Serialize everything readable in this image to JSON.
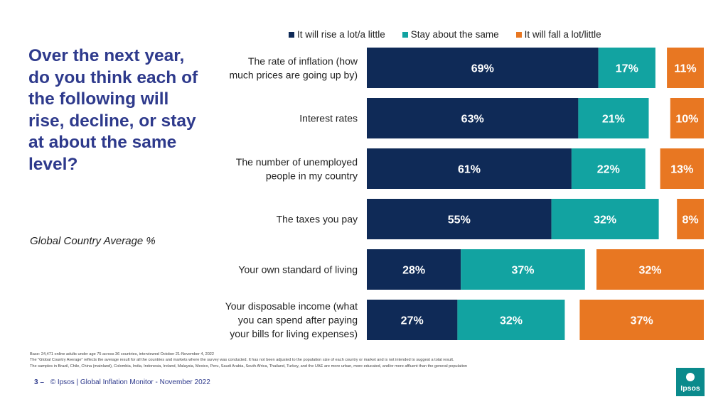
{
  "question": "Over the next year, do you think each of the following will rise, decline, or stay at about the same level?",
  "subtitle": "Global Country Average %",
  "footnotes": [
    "Base: 24,471 online adults under age 75 across 36 countries, interviewed October 21-November 4, 2022",
    "The \"Global Country Average\" reflects the average result for all the countries and markets where the survey was conducted. It has not been adjusted to the population size of each country or market and is not intended to suggest a total result.",
    "The samples in Brazil, Chile, China (mainland), Colombia, India, Indonesia, Ireland, Malaysia, Mexico, Peru, Saudi Arabia, South Africa, Thailand, Turkey, and the UAE are more urban, more educated, and/or more affluent than the general population"
  ],
  "footer": {
    "page": "3 –",
    "text": "© Ipsos | Global Inflation Monitor - November 2022"
  },
  "logo": {
    "text": "Ipsos",
    "color": "#0a8a8c"
  },
  "colors": {
    "rise": "#0f2a57",
    "same": "#12a3a1",
    "fall": "#e87722"
  },
  "chart_data": {
    "type": "bar",
    "orientation": "horizontal-stacked-diverging",
    "categories": [
      "The rate of inflation (how much prices are going up by)",
      "Interest rates",
      "The number of unemployed people in my country",
      "The taxes you pay",
      "Your own standard of living",
      "Your disposable income (what you can spend after paying your bills for living expenses)"
    ],
    "series": [
      {
        "name": "It will rise a lot/a little",
        "values": [
          69,
          63,
          61,
          55,
          28,
          27
        ]
      },
      {
        "name": "Stay about the same",
        "values": [
          17,
          21,
          22,
          32,
          37,
          32
        ]
      },
      {
        "name": "It will fall a lot/little",
        "values": [
          11,
          10,
          13,
          8,
          32,
          37
        ]
      }
    ],
    "value_suffix": "%",
    "legend_position": "top"
  }
}
